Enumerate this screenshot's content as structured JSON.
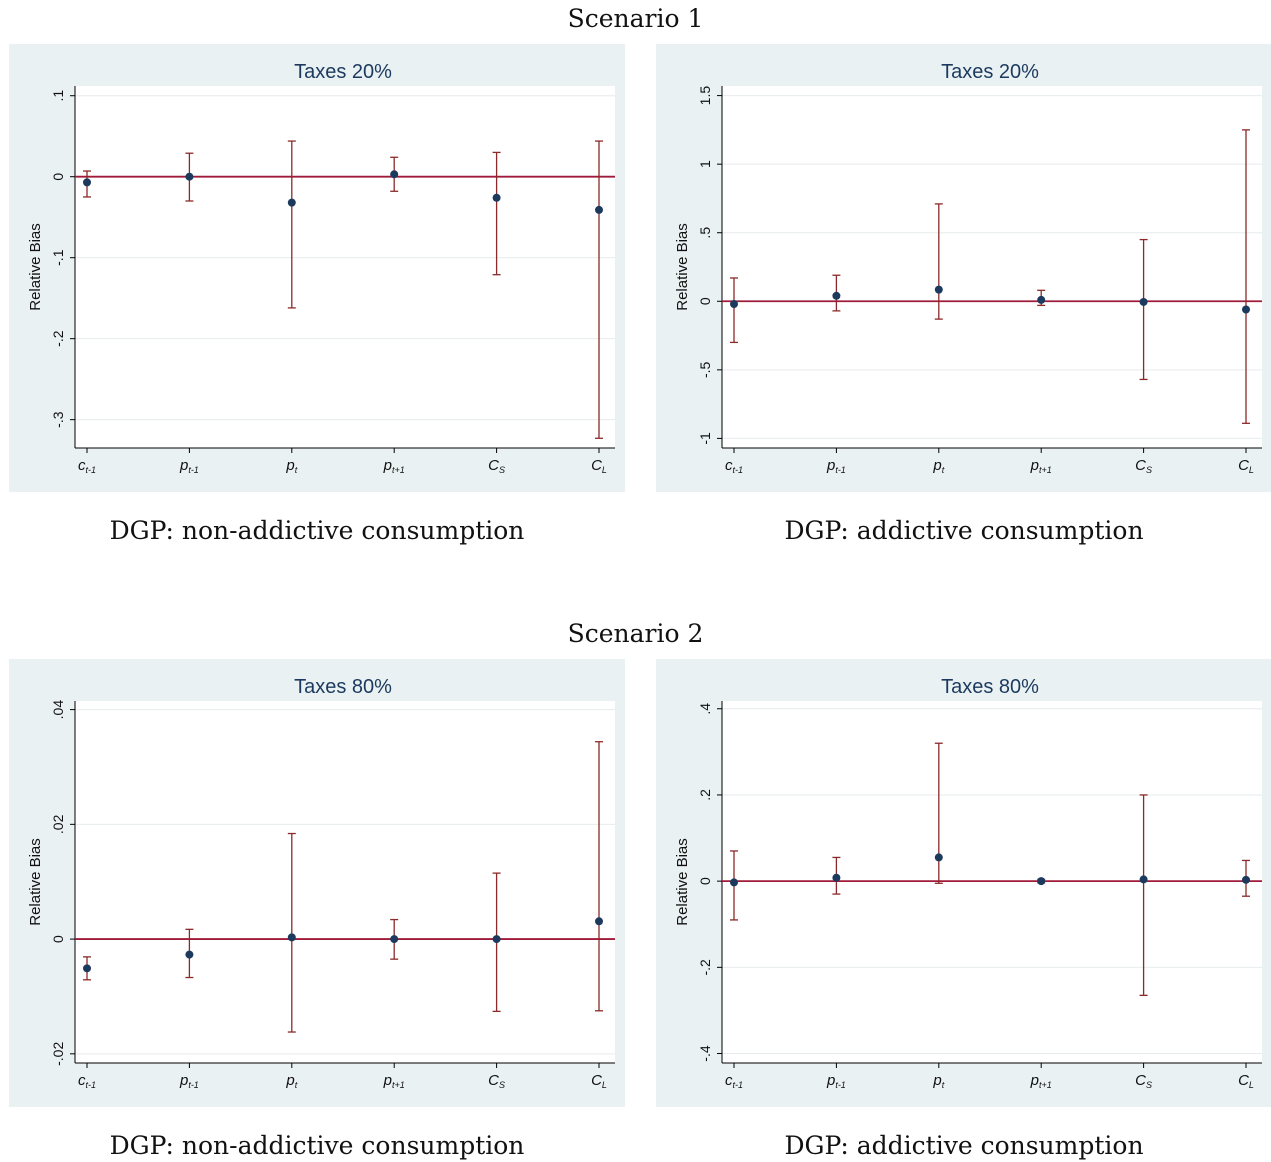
{
  "scenario_titles": [
    "Scenario 1",
    "Scenario 2"
  ],
  "captions": [
    "DGP: non-addictive consumption",
    "DGP: addictive consumption",
    "DGP: non-addictive consumption",
    "DGP: addictive consumption"
  ],
  "colors": {
    "panel_bg": "#eaf1f3",
    "point": "#1c3a5e",
    "error_bar": "#8b2a2a",
    "zero_line": "#a01a3a",
    "grid": "#e6ebec"
  },
  "chart_data": [
    {
      "type": "scatter",
      "title": "Taxes 20%",
      "ylabel": "Relative Bias",
      "categories": [
        {
          "base": "c",
          "sub": "t-1"
        },
        {
          "base": "p",
          "sub": "t-1"
        },
        {
          "base": "p",
          "sub": "t"
        },
        {
          "base": "p",
          "sub": "t+1"
        },
        {
          "base": "C",
          "sub": "S"
        },
        {
          "base": "C",
          "sub": "L"
        }
      ],
      "yticks": [
        {
          "value": 0.1,
          "label": ".1"
        },
        {
          "value": 0,
          "label": "0"
        },
        {
          "value": -0.1,
          "label": "-.1"
        },
        {
          "value": -0.2,
          "label": "-.2"
        },
        {
          "value": -0.3,
          "label": "-.3"
        }
      ],
      "ylim": [
        -0.335,
        0.112
      ],
      "reference_line": 0,
      "points": [
        {
          "y": -0.007,
          "low": -0.025,
          "high": 0.007
        },
        {
          "y": 0.0,
          "low": -0.03,
          "high": 0.029
        },
        {
          "y": -0.032,
          "low": -0.162,
          "high": 0.044
        },
        {
          "y": 0.003,
          "low": -0.018,
          "high": 0.024
        },
        {
          "y": -0.026,
          "low": -0.121,
          "high": 0.03
        },
        {
          "y": -0.041,
          "low": -0.323,
          "high": 0.044
        }
      ]
    },
    {
      "type": "scatter",
      "title": "Taxes 20%",
      "ylabel": "Relative Bias",
      "categories": [
        {
          "base": "c",
          "sub": "t-1"
        },
        {
          "base": "p",
          "sub": "t-1"
        },
        {
          "base": "p",
          "sub": "t"
        },
        {
          "base": "p",
          "sub": "t+1"
        },
        {
          "base": "C",
          "sub": "S"
        },
        {
          "base": "C",
          "sub": "L"
        }
      ],
      "yticks": [
        {
          "value": 1.5,
          "label": "1.5"
        },
        {
          "value": 1,
          "label": "1"
        },
        {
          "value": 0.5,
          "label": ".5"
        },
        {
          "value": 0,
          "label": "0"
        },
        {
          "value": -0.5,
          "label": "-.5"
        },
        {
          "value": -1,
          "label": "-1"
        }
      ],
      "ylim": [
        -1.07,
        1.57
      ],
      "reference_line": 0,
      "points": [
        {
          "y": -0.02,
          "low": -0.3,
          "high": 0.17
        },
        {
          "y": 0.04,
          "low": -0.07,
          "high": 0.19
        },
        {
          "y": 0.085,
          "low": -0.13,
          "high": 0.71
        },
        {
          "y": 0.01,
          "low": -0.03,
          "high": 0.08
        },
        {
          "y": -0.005,
          "low": -0.57,
          "high": 0.45
        },
        {
          "y": -0.06,
          "low": -0.89,
          "high": 1.25
        }
      ]
    },
    {
      "type": "scatter",
      "title": "Taxes 80%",
      "ylabel": "Relative Bias",
      "categories": [
        {
          "base": "c",
          "sub": "t-1"
        },
        {
          "base": "p",
          "sub": "t-1"
        },
        {
          "base": "p",
          "sub": "t"
        },
        {
          "base": "p",
          "sub": "t+1"
        },
        {
          "base": "C",
          "sub": "S"
        },
        {
          "base": "C",
          "sub": "L"
        }
      ],
      "yticks": [
        {
          "value": 0.04,
          "label": ".04"
        },
        {
          "value": 0.02,
          "label": ".02"
        },
        {
          "value": 0,
          "label": "0"
        },
        {
          "value": -0.02,
          "label": "-.02"
        }
      ],
      "ylim": [
        -0.0216,
        0.0415
      ],
      "reference_line": 0,
      "points": [
        {
          "y": -0.0051,
          "low": -0.0071,
          "high": -0.0031
        },
        {
          "y": -0.0027,
          "low": -0.0067,
          "high": 0.0017
        },
        {
          "y": 0.0003,
          "low": -0.0162,
          "high": 0.0184
        },
        {
          "y": 0.0,
          "low": -0.0035,
          "high": 0.0034
        },
        {
          "y": 0.0,
          "low": -0.0126,
          "high": 0.0115
        },
        {
          "y": 0.0031,
          "low": -0.0125,
          "high": 0.0344
        }
      ]
    },
    {
      "type": "scatter",
      "title": "Taxes 80%",
      "ylabel": "Relative Bias",
      "categories": [
        {
          "base": "c",
          "sub": "t-1"
        },
        {
          "base": "p",
          "sub": "t-1"
        },
        {
          "base": "p",
          "sub": "t"
        },
        {
          "base": "p",
          "sub": "t+1"
        },
        {
          "base": "C",
          "sub": "S"
        },
        {
          "base": "C",
          "sub": "L"
        }
      ],
      "yticks": [
        {
          "value": 0.4,
          "label": ".4"
        },
        {
          "value": 0.2,
          "label": ".2"
        },
        {
          "value": 0,
          "label": "0"
        },
        {
          "value": -0.2,
          "label": "-.2"
        },
        {
          "value": -0.4,
          "label": "-.4"
        }
      ],
      "ylim": [
        -0.422,
        0.418
      ],
      "reference_line": 0,
      "points": [
        {
          "y": -0.003,
          "low": -0.09,
          "high": 0.07
        },
        {
          "y": 0.008,
          "low": -0.03,
          "high": 0.055
        },
        {
          "y": 0.055,
          "low": -0.005,
          "high": 0.32
        },
        {
          "y": 0.0,
          "low": -0.004,
          "high": 0.004
        },
        {
          "y": 0.004,
          "low": -0.265,
          "high": 0.2
        },
        {
          "y": 0.003,
          "low": -0.035,
          "high": 0.048
        }
      ]
    }
  ]
}
